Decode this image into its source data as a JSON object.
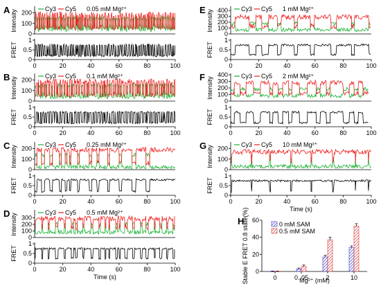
{
  "colors": {
    "cy3": "#18b030",
    "cy5": "#ee1c1c",
    "fret": "#000000",
    "bar_0sam": "#3838c8",
    "bar_05sam": "#d83838"
  },
  "legend": {
    "cy3": "Cy3",
    "cy5": "Cy5"
  },
  "labels": {
    "intensity": "Intensity",
    "fret": "FRET",
    "time": "Time (s)"
  },
  "chart_data": [
    {
      "type": "line",
      "panel": "A",
      "condition": "0.05 mM Mg²⁺",
      "xlim": [
        0,
        100
      ],
      "xticks": [
        0,
        20,
        40,
        60,
        80,
        100
      ],
      "intensity_ylim": [
        0,
        250
      ],
      "intensity_yticks": [
        0,
        100,
        200
      ],
      "fret_ylim": [
        0,
        1
      ],
      "fret_yticks": [
        0,
        0.5,
        1
      ],
      "fret_ytick_labels": [
        "0",
        "0.5",
        "1"
      ],
      "cy3_levels": [
        150,
        40
      ],
      "cy5_levels": [
        60,
        190
      ],
      "fret_levels": [
        0.2,
        0.75
      ],
      "dwell_low": [
        0.4,
        1.2
      ],
      "dwell_high": [
        0.3,
        1.0
      ],
      "end_time": 100
    },
    {
      "type": "line",
      "panel": "B",
      "condition": "0.1 mM Mg²⁺",
      "xlim": [
        0,
        100
      ],
      "xticks": [
        0,
        20,
        40,
        60,
        80,
        100
      ],
      "intensity_ylim": [
        0,
        250
      ],
      "intensity_yticks": [
        0,
        100,
        200
      ],
      "fret_ylim": [
        0,
        1
      ],
      "fret_yticks": [
        0,
        0.5,
        1
      ],
      "fret_ytick_labels": [
        "0",
        "0.5",
        "1"
      ],
      "cy3_levels": [
        150,
        40
      ],
      "cy5_levels": [
        60,
        190
      ],
      "fret_levels": [
        0.2,
        0.75
      ],
      "dwell_low": [
        0.4,
        1.2
      ],
      "dwell_high": [
        0.4,
        1.4
      ],
      "end_time": 100
    },
    {
      "type": "line",
      "panel": "C",
      "condition": "0.25 mM Mg²⁺",
      "xlim": [
        0,
        100
      ],
      "xticks": [
        0,
        20,
        40,
        60,
        80,
        100
      ],
      "intensity_ylim": [
        0,
        250
      ],
      "intensity_yticks": [
        0,
        100,
        200
      ],
      "fret_ylim": [
        0,
        1
      ],
      "fret_yticks": [
        0,
        0.5,
        1
      ],
      "fret_ytick_labels": [
        "0",
        "0.5",
        "1"
      ],
      "cy3_levels": [
        140,
        25
      ],
      "cy5_levels": [
        60,
        190
      ],
      "fret_levels": [
        0.2,
        0.8
      ],
      "dwell_low": [
        0.5,
        3.0
      ],
      "dwell_high": [
        1.5,
        8.0
      ],
      "end_time": 100,
      "final_high": [
        83,
        100
      ]
    },
    {
      "type": "line",
      "panel": "D",
      "condition": "0.5 mM Mg²⁺",
      "xlim": [
        0,
        100
      ],
      "xticks": [
        0,
        20,
        40,
        60,
        80,
        100
      ],
      "intensity_ylim": [
        0,
        400
      ],
      "intensity_yticks": [
        0,
        100,
        200,
        300
      ],
      "fret_ylim": [
        0,
        1
      ],
      "fret_yticks": [
        0,
        0.5,
        1
      ],
      "fret_ytick_labels": [
        "0",
        "0.5",
        "1"
      ],
      "cy3_levels": [
        200,
        80
      ],
      "cy5_levels": [
        150,
        290
      ],
      "fret_levels": [
        0.25,
        0.75
      ],
      "dwell_low": [
        0.4,
        2.0
      ],
      "dwell_high": [
        1.0,
        5.0
      ],
      "end_time": 100
    },
    {
      "type": "line",
      "panel": "E",
      "condition": "1 mM Mg²⁺",
      "xlim": [
        0,
        100
      ],
      "xticks": [
        0,
        20,
        40,
        60,
        80,
        100
      ],
      "intensity_ylim": [
        0,
        450
      ],
      "intensity_yticks": [
        0,
        100,
        200,
        300,
        400
      ],
      "fret_ylim": [
        0,
        1
      ],
      "fret_yticks": [
        0,
        0.5,
        1
      ],
      "fret_ytick_labels": [
        "0",
        "0.5",
        "1"
      ],
      "cy3_levels": [
        180,
        70
      ],
      "cy5_levels": [
        130,
        290
      ],
      "fret_levels": [
        0.25,
        0.75
      ],
      "dwell_low": [
        1.0,
        5.0
      ],
      "dwell_high": [
        4.0,
        15.0
      ],
      "end_time": 100
    },
    {
      "type": "line",
      "panel": "F",
      "condition": "2 mM Mg²⁺",
      "xlim": [
        0,
        100
      ],
      "xticks": [
        0,
        20,
        40,
        60,
        80,
        100
      ],
      "intensity_ylim": [
        0,
        400
      ],
      "intensity_yticks": [
        0,
        100,
        200,
        300,
        400
      ],
      "fret_ylim": [
        0,
        1
      ],
      "fret_yticks": [
        0,
        0.5,
        1
      ],
      "fret_ytick_labels": [
        "0",
        "0.5",
        "1"
      ],
      "cy3_levels": [
        180,
        80
      ],
      "cy5_levels": [
        120,
        280
      ],
      "fret_levels": [
        0.2,
        0.75
      ],
      "dwell_low": [
        2.0,
        6.0
      ],
      "dwell_high": [
        3.0,
        10.0
      ],
      "end_time": 98
    },
    {
      "type": "line",
      "panel": "G",
      "condition": "10 mM Mg²⁺",
      "xlim": [
        0,
        100
      ],
      "xticks": [
        0,
        20,
        40,
        60,
        80,
        100
      ],
      "intensity_ylim": [
        0,
        250
      ],
      "intensity_yticks": [
        0,
        100,
        200
      ],
      "fret_ylim": [
        0,
        1
      ],
      "fret_yticks": [
        0,
        0.5,
        1
      ],
      "fret_ytick_labels": [
        "0",
        "0.5",
        "1"
      ],
      "cy3_levels": [
        120,
        30
      ],
      "cy5_levels": [
        70,
        170
      ],
      "fret_levels": [
        0.2,
        0.75
      ],
      "dwell_low": [
        0.3,
        1.2
      ],
      "dwell_high": [
        5.0,
        16.0
      ],
      "end_time": 100
    },
    {
      "type": "bar",
      "panel": "H",
      "categories": [
        "0",
        "0. 05",
        "2",
        "10"
      ],
      "series": [
        {
          "name": "0 mM SAM",
          "values": [
            0,
            3,
            17,
            28
          ],
          "errors": [
            0.5,
            1,
            2,
            2
          ]
        },
        {
          "name": "0.5 mM SAM",
          "values": [
            0,
            6,
            37,
            53
          ],
          "errors": [
            0.5,
            1.5,
            3,
            3
          ]
        }
      ],
      "ylim": [
        0,
        60
      ],
      "yticks": [
        0,
        20,
        40,
        60
      ],
      "ylabel": "Stable E FRET 0.8 state(%)",
      "xlabel": "Mg²⁺ (mM)"
    }
  ]
}
